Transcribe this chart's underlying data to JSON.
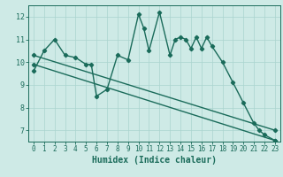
{
  "xlabel": "Humidex (Indice chaleur)",
  "ylabel": "",
  "bg_color": "#ceeae6",
  "line_color": "#1a6b5a",
  "grid_color": "#aad4cf",
  "xlim": [
    -0.5,
    23.5
  ],
  "ylim": [
    6.5,
    12.5
  ],
  "xticks": [
    0,
    1,
    2,
    3,
    4,
    5,
    6,
    7,
    8,
    9,
    10,
    11,
    12,
    13,
    14,
    15,
    16,
    17,
    18,
    19,
    20,
    21,
    22,
    23
  ],
  "yticks": [
    7,
    8,
    9,
    10,
    11,
    12
  ],
  "series1_x": [
    0,
    1,
    2,
    3,
    4,
    5,
    5.5,
    6,
    7,
    8,
    9,
    10,
    10.5,
    11,
    12,
    13,
    13.5,
    14,
    14.5,
    15,
    15.5,
    16,
    16.5,
    17,
    18,
    19,
    20,
    21,
    21.5,
    22,
    23
  ],
  "series1_y": [
    9.6,
    10.5,
    11.0,
    10.3,
    10.2,
    9.9,
    9.9,
    8.5,
    8.8,
    10.3,
    10.1,
    12.1,
    11.5,
    10.5,
    12.2,
    10.3,
    11.0,
    11.1,
    11.0,
    10.6,
    11.1,
    10.6,
    11.1,
    10.7,
    10.0,
    9.1,
    8.2,
    7.3,
    7.0,
    6.8,
    6.55
  ],
  "series2_x": [
    0,
    23
  ],
  "series2_y": [
    10.3,
    7.0
  ],
  "series3_x": [
    0,
    23
  ],
  "series3_y": [
    9.9,
    6.55
  ],
  "marker": "D",
  "marker_size": 2.2,
  "line_width": 1.0,
  "label_fontsize": 7,
  "tick_fontsize": 5.5
}
